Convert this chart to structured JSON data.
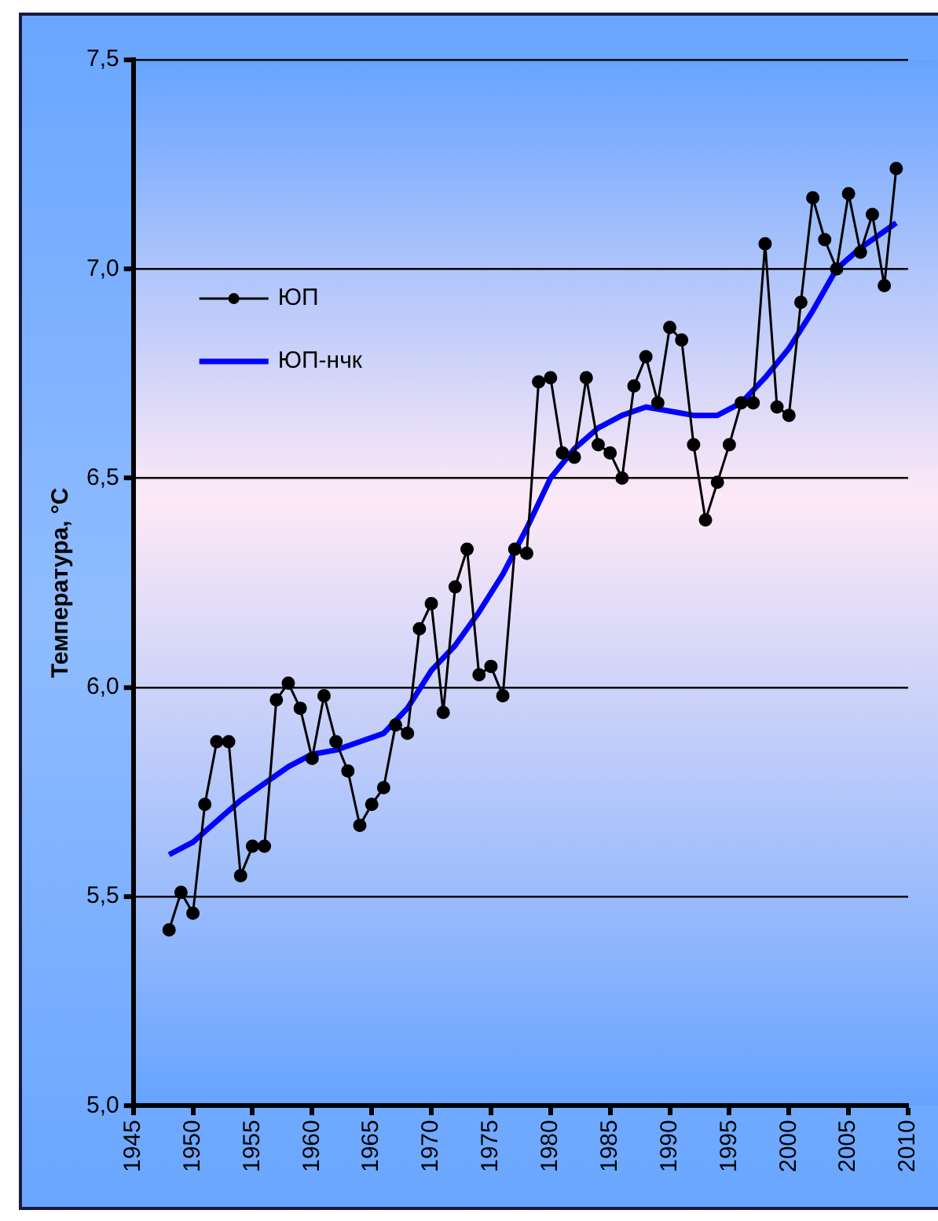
{
  "chart_data": {
    "type": "line",
    "ylabel": "Температура, °C",
    "xlim": [
      1945,
      2010
    ],
    "xticks": [
      1945,
      1950,
      1955,
      1960,
      1965,
      1970,
      1975,
      1980,
      1985,
      1990,
      1995,
      2000,
      2005,
      2010
    ],
    "ylim": [
      5.0,
      7.5
    ],
    "yticks": [
      {
        "value": 5.0,
        "label": "5,0"
      },
      {
        "value": 5.5,
        "label": "5,5"
      },
      {
        "value": 6.0,
        "label": "6,0"
      },
      {
        "value": 6.5,
        "label": "6,5"
      },
      {
        "value": 7.0,
        "label": "7,0"
      },
      {
        "value": 7.5,
        "label": "7,5"
      }
    ],
    "grid": "y",
    "legend": "top left",
    "series": [
      {
        "name": "ЮП",
        "color": "#000000",
        "marker": "circle",
        "x": [
          1948,
          1949,
          1950,
          1951,
          1952,
          1953,
          1954,
          1955,
          1956,
          1957,
          1958,
          1959,
          1960,
          1961,
          1962,
          1963,
          1964,
          1965,
          1966,
          1967,
          1968,
          1969,
          1970,
          1971,
          1972,
          1973,
          1974,
          1975,
          1976,
          1977,
          1978,
          1979,
          1980,
          1981,
          1982,
          1983,
          1984,
          1985,
          1986,
          1987,
          1988,
          1989,
          1990,
          1991,
          1992,
          1993,
          1994,
          1995,
          1996,
          1997,
          1998,
          1999,
          2000,
          2001,
          2002,
          2003,
          2004,
          2005,
          2006,
          2007,
          2008,
          2009
        ],
        "values": [
          5.42,
          5.51,
          5.46,
          5.72,
          5.87,
          5.87,
          5.55,
          5.62,
          5.62,
          5.97,
          6.01,
          5.95,
          5.83,
          5.98,
          5.87,
          5.8,
          5.67,
          5.72,
          5.76,
          5.91,
          5.89,
          6.14,
          6.2,
          5.94,
          6.24,
          6.33,
          6.03,
          6.05,
          5.98,
          6.33,
          6.32,
          6.73,
          6.74,
          6.56,
          6.55,
          6.74,
          6.58,
          6.56,
          6.5,
          6.72,
          6.79,
          6.68,
          6.86,
          6.83,
          6.58,
          6.4,
          6.49,
          6.58,
          6.68,
          6.68,
          7.06,
          6.67,
          6.65,
          6.92,
          7.17,
          7.07,
          7.0,
          7.18,
          7.04,
          7.13,
          6.96,
          7.24
        ]
      },
      {
        "name": "ЮП-нчк",
        "color": "#0000ff",
        "marker": "none",
        "x": [
          1948,
          1950,
          1952,
          1954,
          1956,
          1958,
          1960,
          1962,
          1964,
          1966,
          1968,
          1970,
          1972,
          1974,
          1976,
          1978,
          1980,
          1982,
          1984,
          1986,
          1988,
          1990,
          1992,
          1994,
          1996,
          1998,
          2000,
          2002,
          2004,
          2006,
          2008,
          2009
        ],
        "values": [
          5.6,
          5.63,
          5.68,
          5.73,
          5.77,
          5.81,
          5.84,
          5.85,
          5.87,
          5.89,
          5.95,
          6.04,
          6.1,
          6.18,
          6.27,
          6.38,
          6.5,
          6.57,
          6.62,
          6.65,
          6.67,
          6.66,
          6.65,
          6.65,
          6.68,
          6.74,
          6.81,
          6.9,
          7.0,
          7.05,
          7.09,
          7.11
        ]
      }
    ]
  }
}
